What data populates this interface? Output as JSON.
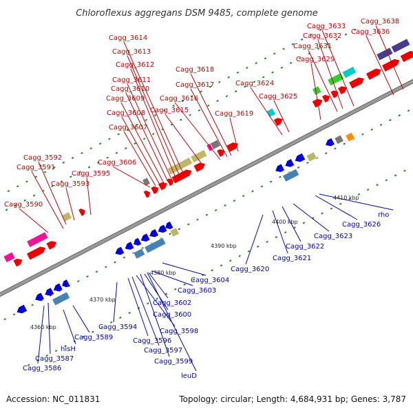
{
  "title": "Chloroflexus aggregans DSM 9485, complete genome",
  "footer": {
    "accession": "Accession: NC_011831",
    "topology": "Topology: circular; Length: 4,684,931 bp; Genes: 3,787"
  },
  "kbp_labels": [
    "4360 kbp",
    "4370 kbp",
    "4380 kbp",
    "4390 kbp",
    "4400 kbp",
    "4410 kbp"
  ],
  "forward_labels": [
    "Cagg_3590",
    "Cagg_3591",
    "Cagg_3592",
    "Cagg_3593",
    "Cagg_3595",
    "Cagg_3606",
    "Cagg_3607",
    "Cagg_3608",
    "Cagg_3609",
    "Cagg_3610",
    "Cagg_3611",
    "Cagg_3612",
    "Cagg_3613",
    "Cagg_3614",
    "Cagg_3615",
    "Cagg_3616",
    "Cagg_3617",
    "Cagg_3618",
    "Cagg_3619",
    "Cagg_3624",
    "Cagg_3625",
    "Cagg_3629",
    "Cagg_3631",
    "Cagg_3632",
    "Cagg_3633",
    "Cagg_3636",
    "Cagg_3638"
  ],
  "reverse_labels": [
    "Cagg_3586",
    "Cagg_3587",
    "hisH",
    "Cagg_3589",
    "Cagg_3594",
    "Cagg_3596",
    "Cagg_3597",
    "Cagg_3598",
    "Cagg_3599",
    "leuD",
    "Cagg_3600",
    "Cagg_3602",
    "Cagg_3603",
    "Cagg_3604",
    "Cagg_3620",
    "Cagg_3621",
    "Cagg_3622",
    "Cagg_3623",
    "Cagg_3626",
    "rho"
  ],
  "colors": {
    "forward_label": "#cc0000",
    "reverse_label": "#0000cc",
    "backbone": "#999999",
    "tick": "#228822",
    "gene_red": "#ee0000",
    "gene_blue": "#0000dd",
    "gene_khaki": "#bdb76b",
    "gene_pink": "#ee1493",
    "gene_slate": "#483d8b",
    "gene_steel": "#4682b4",
    "gene_green": "#32cd32",
    "gene_cyan": "#00cccc",
    "gene_orange": "#ff8c00",
    "gene_gray": "#777777"
  }
}
